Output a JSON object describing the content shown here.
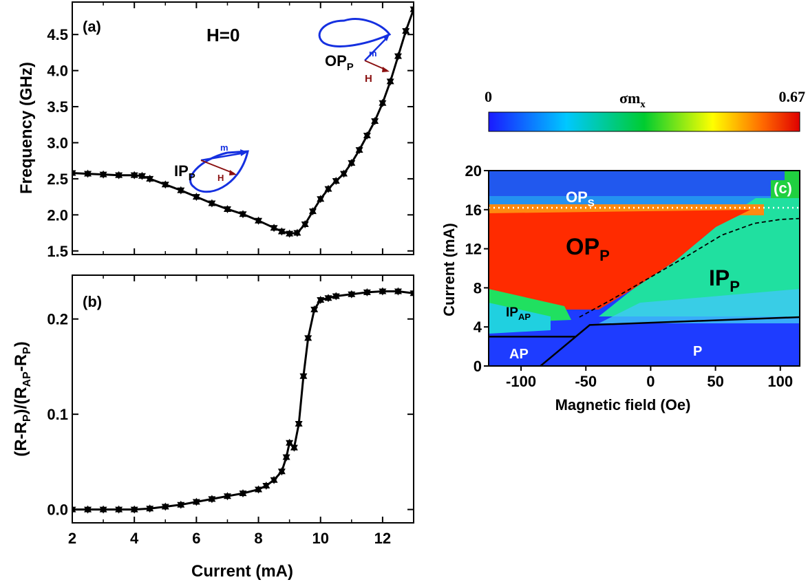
{
  "chart_data": [
    {
      "id": "a",
      "type": "line",
      "panel_label": "(a)",
      "annotation": "H=0",
      "xlabel": "",
      "ylabel": "Frequency (GHz)",
      "xlim": [
        2,
        13
      ],
      "ylim": [
        1.45,
        4.95
      ],
      "xticks": [
        2,
        4,
        6,
        8,
        10,
        12
      ],
      "yticks": [
        1.5,
        2.0,
        2.5,
        3.0,
        3.5,
        4.0,
        4.5
      ],
      "ytick_labels": [
        "1.5",
        "2.0",
        "2.5",
        "3.0",
        "3.5",
        "4.0",
        "4.5"
      ],
      "series": [
        {
          "x": [
            2.0,
            2.5,
            3.0,
            3.5,
            4.0,
            4.25,
            4.5,
            5.0,
            5.5,
            6.0,
            6.5,
            7.0,
            7.5,
            8.0,
            8.5,
            8.75,
            9.0,
            9.25,
            9.5,
            9.75,
            10.0,
            10.25,
            10.5,
            10.75,
            11.0,
            11.25,
            11.5,
            11.75,
            12.0,
            12.25,
            12.5,
            12.75,
            13.0
          ],
          "y": [
            2.58,
            2.57,
            2.56,
            2.55,
            2.55,
            2.54,
            2.5,
            2.42,
            2.34,
            2.25,
            2.16,
            2.08,
            2.01,
            1.92,
            1.82,
            1.77,
            1.74,
            1.75,
            1.87,
            2.05,
            2.22,
            2.36,
            2.47,
            2.57,
            2.72,
            2.9,
            3.1,
            3.3,
            3.55,
            3.85,
            4.2,
            4.55,
            4.85
          ]
        }
      ],
      "insets": [
        {
          "label": "IP",
          "subscript": "P",
          "m_label": "m",
          "h_label": "H"
        },
        {
          "label": "OP",
          "subscript": "P",
          "m_label": "m",
          "h_label": "H"
        }
      ]
    },
    {
      "id": "b",
      "type": "line",
      "panel_label": "(b)",
      "xlabel": "Current (mA)",
      "ylabel": "(R-R_P)/(R_AP-R_P)",
      "ylabel_parts": [
        "(R-R",
        "P",
        ")/(R",
        "AP",
        "-R",
        "P",
        ")"
      ],
      "xlim": [
        2,
        13
      ],
      "ylim": [
        -0.014,
        0.246
      ],
      "xticks": [
        2,
        4,
        6,
        8,
        10,
        12
      ],
      "yticks": [
        0.0,
        0.1,
        0.2
      ],
      "ytick_labels": [
        "0.0",
        "0.1",
        "0.2"
      ],
      "series": [
        {
          "x": [
            2.0,
            2.5,
            3.0,
            3.5,
            4.0,
            4.5,
            5.0,
            5.5,
            6.0,
            6.5,
            7.0,
            7.5,
            8.0,
            8.25,
            8.5,
            8.75,
            8.9,
            9.0,
            9.15,
            9.3,
            9.45,
            9.6,
            9.8,
            10.0,
            10.25,
            10.5,
            11.0,
            11.5,
            12.0,
            12.5,
            13.0
          ],
          "y": [
            0.0,
            0.0,
            0.0,
            0.0,
            0.0,
            0.001,
            0.003,
            0.005,
            0.008,
            0.011,
            0.014,
            0.017,
            0.021,
            0.025,
            0.031,
            0.04,
            0.055,
            0.07,
            0.065,
            0.09,
            0.14,
            0.18,
            0.21,
            0.22,
            0.222,
            0.224,
            0.226,
            0.228,
            0.229,
            0.229,
            0.227
          ]
        }
      ]
    },
    {
      "id": "c",
      "type": "heatmap",
      "panel_label": "(c)",
      "xlabel": "Magnetic field (Oe)",
      "ylabel": "Current (mA)",
      "xlim": [
        -125,
        115
      ],
      "ylim": [
        0,
        20
      ],
      "xticks": [
        -100,
        -50,
        0,
        50,
        100
      ],
      "yticks": [
        0,
        4,
        8,
        12,
        16,
        20
      ],
      "colorbar": {
        "label": "σm",
        "label_sub": "x",
        "min_label": "0",
        "max_label": "0.67",
        "min": 0,
        "max": 0.67
      },
      "regions": [
        {
          "label": "OP",
          "sub": "S"
        },
        {
          "label": "OP",
          "sub": "P"
        },
        {
          "label": "IP",
          "sub": "P"
        },
        {
          "label": "IP",
          "sub": "AP"
        },
        {
          "label": "AP",
          "sub": ""
        },
        {
          "label": "P",
          "sub": ""
        }
      ],
      "boundaries": {
        "solid_lower": [
          [
            -125,
            3
          ],
          [
            -58,
            3
          ],
          [
            -85,
            0
          ],
          [
            -47,
            4.2
          ],
          [
            115,
            5
          ]
        ],
        "dashed": [
          [
            -55,
            5
          ],
          [
            -30,
            6.8
          ],
          [
            0,
            9.1
          ],
          [
            30,
            11.4
          ],
          [
            55,
            13.4
          ],
          [
            80,
            14.6
          ],
          [
            100,
            15
          ],
          [
            115,
            15.1
          ]
        ],
        "dotted_y": 16.2
      }
    }
  ]
}
